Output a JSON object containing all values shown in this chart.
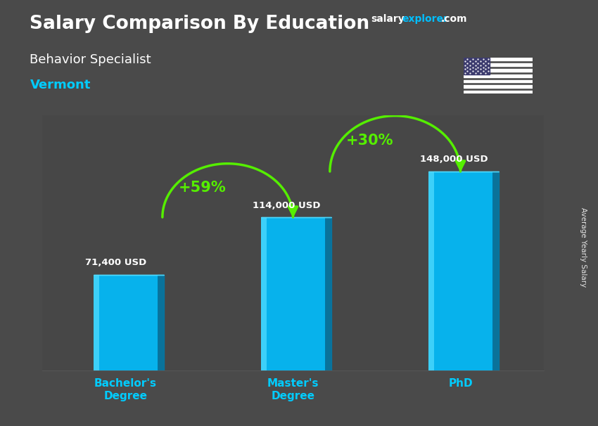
{
  "title": "Salary Comparison By Education",
  "subtitle": "Behavior Specialist",
  "location": "Vermont",
  "categories": [
    "Bachelor's\nDegree",
    "Master's\nDegree",
    "PhD"
  ],
  "values": [
    71400,
    114000,
    148000
  ],
  "value_labels": [
    "71,400 USD",
    "114,000 USD",
    "148,000 USD"
  ],
  "bar_color_main": "#00BFFF",
  "bar_color_light": "#55DDFF",
  "bar_color_dark": "#0099CC",
  "bar_color_side": "#007AAA",
  "bar_width": 0.38,
  "pct_labels": [
    "+59%",
    "+30%"
  ],
  "pct_color": "#7FFF00",
  "arrow_color": "#55EE00",
  "title_color": "#FFFFFF",
  "subtitle_color": "#FFFFFF",
  "location_color": "#00CCFF",
  "value_label_color": "#FFFFFF",
  "xlabel_color": "#00CCFF",
  "ylabel_text": "Average Yearly Salary",
  "bg_color": "#4a4a4a",
  "watermark_salary": "salary",
  "watermark_explorer": "explorer",
  "watermark_com": ".com",
  "watermark_color_white": "#FFFFFF",
  "watermark_color_cyan": "#00BFFF",
  "ylim": [
    0,
    190000
  ],
  "x_positions": [
    0,
    1,
    2
  ]
}
